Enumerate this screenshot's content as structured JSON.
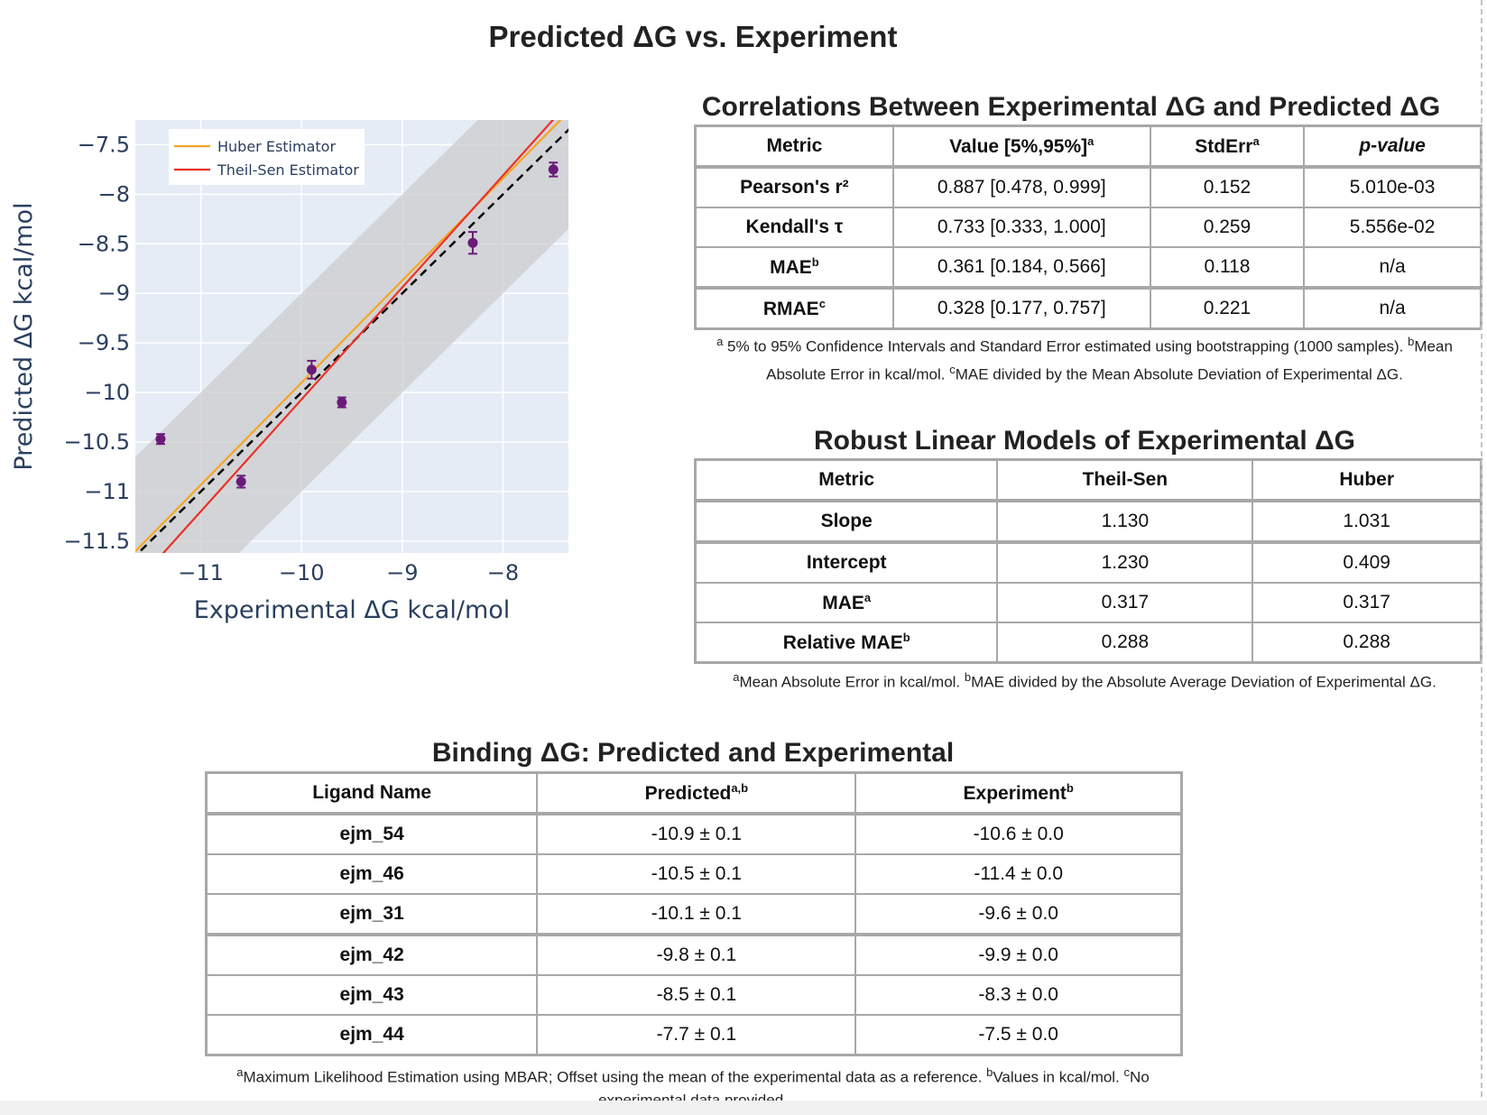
{
  "title": "Predicted ΔG vs. Experiment",
  "chart_data": {
    "type": "scatter",
    "title": "",
    "xlabel": "Experimental ΔG kcal/mol",
    "ylabel": "Predicted ΔG kcal/mol",
    "xlim": [
      -11.65,
      -7.35
    ],
    "ylim": [
      -11.62,
      -7.25
    ],
    "xticks": [
      -11,
      -10,
      -9,
      -8
    ],
    "xtick_labels": [
      "−11",
      "−10",
      "−9",
      "−8"
    ],
    "yticks": [
      -7.5,
      -8,
      -8.5,
      -9,
      -9.5,
      -10,
      -10.5,
      -11,
      -11.5
    ],
    "ytick_labels": [
      "−7.5",
      "−8",
      "−8.5",
      "−9",
      "−9.5",
      "−10",
      "−10.5",
      "−11",
      "−11.5"
    ],
    "grid": true,
    "legend_placement": "top-left",
    "band_halfwidth": 1.0,
    "points": [
      {
        "x": -10.6,
        "y": -10.9,
        "yerr": 0.06
      },
      {
        "x": -11.4,
        "y": -10.47,
        "yerr": 0.05
      },
      {
        "x": -9.6,
        "y": -10.1,
        "yerr": 0.05
      },
      {
        "x": -9.9,
        "y": -9.77,
        "yerr": 0.09
      },
      {
        "x": -8.3,
        "y": -8.49,
        "yerr": 0.11
      },
      {
        "x": -7.5,
        "y": -7.75,
        "yerr": 0.07
      }
    ],
    "lines": [
      {
        "name": "Huber Estimator",
        "slope": 1.031,
        "intercept": 0.409,
        "color": "#f5a623"
      },
      {
        "name": "Theil-Sen Estimator",
        "slope": 1.13,
        "intercept": 1.23,
        "color": "#e8322a"
      }
    ],
    "colors": {
      "point": "#6a1b78",
      "plot_bg": "#e5ecf6",
      "band": "#cccccc",
      "identity": "#000000"
    }
  },
  "correlations": {
    "title": "Correlations Between Experimental ΔG and Predicted ΔG",
    "headers": {
      "metric": "Metric",
      "value": "Value [5%,95%]",
      "value_sup": "a",
      "stderr": "StdErr",
      "stderr_sup": "a",
      "pvalue": "p-value"
    },
    "rows": [
      {
        "metric": "Pearson's r²",
        "sup": "",
        "value": "0.887 [0.478, 0.999]",
        "stderr": "0.152",
        "p": "5.010e-03"
      },
      {
        "metric": "Kendall's τ",
        "sup": "",
        "value": "0.733 [0.333, 1.000]",
        "stderr": "0.259",
        "p": "5.556e-02"
      },
      {
        "metric": "MAE",
        "sup": "b",
        "value": "0.361 [0.184, 0.566]",
        "stderr": "0.118",
        "p": "n/a"
      },
      {
        "metric": "RMAE",
        "sup": "c",
        "value": "0.328 [0.177, 0.757]",
        "stderr": "0.221",
        "p": "n/a"
      }
    ],
    "footnote_line1": " 5% to 95% Confidence Intervals and Standard Error estimated using bootstrapping (1000 samples). ",
    "footnote_line1_end": "Mean",
    "footnote_line2a": "Absolute Error in kcal/mol. ",
    "footnote_line2b": "MAE divided by the Mean Absolute Deviation of Experimental ΔG."
  },
  "robust": {
    "title": "Robust Linear Models of Experimental ΔG",
    "headers": {
      "metric": "Metric",
      "theil": "Theil-Sen",
      "huber": "Huber"
    },
    "rows": [
      {
        "metric": "Slope",
        "sup": "",
        "theil": "1.130",
        "huber": "1.031"
      },
      {
        "metric": "Intercept",
        "sup": "",
        "theil": "1.230",
        "huber": "0.409"
      },
      {
        "metric": "MAE",
        "sup": "a",
        "theil": "0.317",
        "huber": "0.317"
      },
      {
        "metric": "Relative MAE",
        "sup": "b",
        "theil": "0.288",
        "huber": "0.288"
      }
    ],
    "footnote_a": "Mean Absolute Error in kcal/mol. ",
    "footnote_b": "MAE divided by the Absolute Average Deviation of Experimental ΔG."
  },
  "binding": {
    "title": "Binding ΔG: Predicted and Experimental",
    "headers": {
      "ligand": "Ligand Name",
      "predicted": "Predicted",
      "predicted_sup": "a,b",
      "experiment": "Experiment",
      "experiment_sup": "b"
    },
    "rows": [
      {
        "ligand": "ejm_54",
        "predicted": "-10.9 ± 0.1",
        "experiment": "-10.6 ± 0.0"
      },
      {
        "ligand": "ejm_46",
        "predicted": "-10.5 ± 0.1",
        "experiment": "-11.4 ± 0.0"
      },
      {
        "ligand": "ejm_31",
        "predicted": "-10.1 ± 0.1",
        "experiment": "-9.6 ± 0.0"
      },
      {
        "ligand": "ejm_42",
        "predicted": "-9.8 ± 0.1",
        "experiment": "-9.9 ± 0.0"
      },
      {
        "ligand": "ejm_43",
        "predicted": "-8.5 ± 0.1",
        "experiment": "-8.3 ± 0.0"
      },
      {
        "ligand": "ejm_44",
        "predicted": "-7.7 ± 0.1",
        "experiment": "-7.5 ± 0.0"
      }
    ],
    "footnote_a": "Maximum Likelihood Estimation using MBAR; Offset using the mean of the experimental data as a reference. ",
    "footnote_b": "Values in kcal/mol. ",
    "footnote_c": "No",
    "footnote_line2": "experimental data provided."
  }
}
